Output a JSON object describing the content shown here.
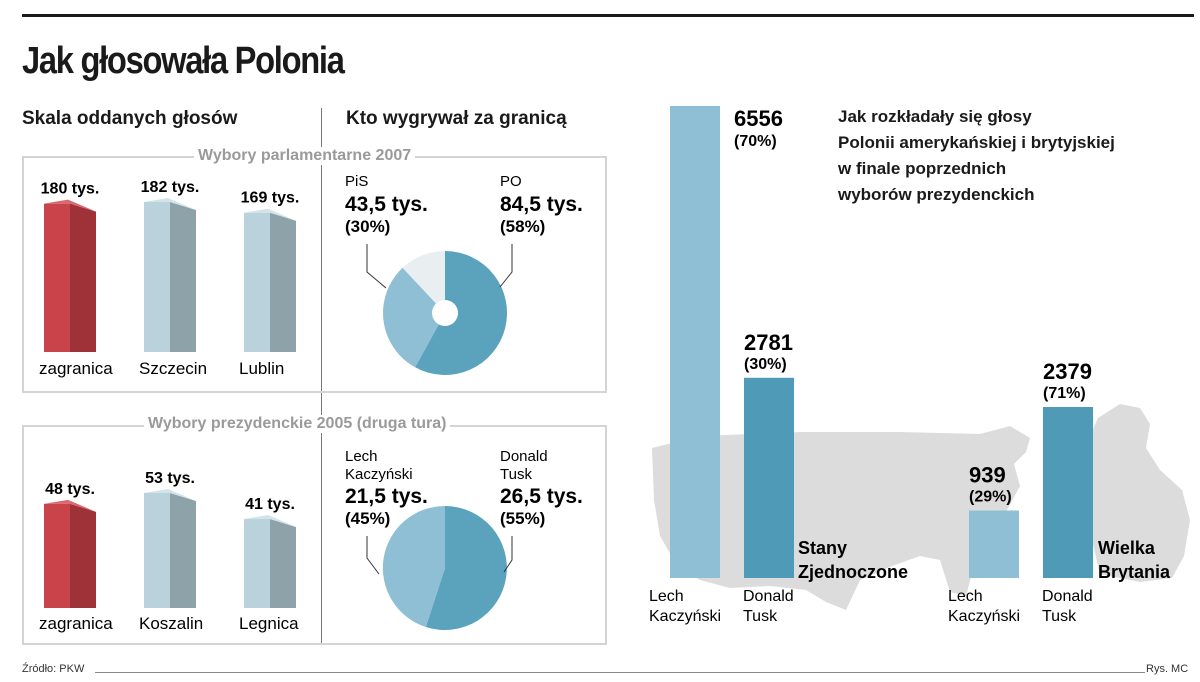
{
  "title": "Jak głosowała Polonia",
  "left_header": "Skala oddanych głosów",
  "middle_header": "Kto wygrywał za granicą",
  "right_header_lines": [
    "Jak rozkładały się głosy",
    "Polonii amerykańskiej i brytyjskiej",
    "w finale poprzednich",
    "wyborów prezydenckich"
  ],
  "footer": {
    "source": "Źródło: PKW",
    "credit": "Rys. MC"
  },
  "colors": {
    "red": "#c8434a",
    "red_dark": "#9f3238",
    "red_top": "#d9676c",
    "grey_front": "#b9d2dc",
    "grey_side": "#8ea2aa",
    "grey_top": "#d3e3ea",
    "pie_light": "#8fbfd4",
    "pie_dark": "#5ba2bd",
    "pie_other": "#e9eef1",
    "bar_light": "#8fbfd4",
    "bar_dark": "#4f9ab6",
    "map": "#dcdcdc"
  },
  "chart_data": [
    {
      "type": "bar",
      "title": "Wybory parlamentarne 2007",
      "categories": [
        "zagranica",
        "Szczecin",
        "Lublin"
      ],
      "values": [
        180,
        182,
        169
      ],
      "value_labels": [
        "180 tys.",
        "182 tys.",
        "169 tys."
      ],
      "unit": "tys.",
      "style": [
        "red",
        "grey",
        "grey"
      ]
    },
    {
      "type": "pie",
      "title": "Wybory parlamentarne 2007",
      "slices": [
        {
          "name": "PO",
          "value": 58,
          "label_value": "84,5 tys.",
          "label_pct": "(58%)"
        },
        {
          "name": "PiS",
          "value": 30,
          "label_value": "43,5 tys.",
          "label_pct": "(30%)"
        },
        {
          "name": "",
          "value": 12
        }
      ]
    },
    {
      "type": "bar",
      "title": "Wybory prezydenckie 2005 (druga tura)",
      "categories": [
        "zagranica",
        "Koszalin",
        "Legnica"
      ],
      "values": [
        48,
        53,
        41
      ],
      "value_labels": [
        "48 tys.",
        "53 tys.",
        "41 tys."
      ],
      "unit": "tys.",
      "style": [
        "red",
        "grey",
        "grey"
      ]
    },
    {
      "type": "pie",
      "title": "Wybory prezydenckie 2005 (druga tura)",
      "slices": [
        {
          "name": "Donald Tusk",
          "name_lines": [
            "Donald",
            "Tusk"
          ],
          "value": 55,
          "label_value": "26,5 tys.",
          "label_pct": "(55%)"
        },
        {
          "name": "Lech Kaczyński",
          "name_lines": [
            "Lech",
            "Kaczyński"
          ],
          "value": 45,
          "label_value": "21,5 tys.",
          "label_pct": "(45%)"
        }
      ]
    },
    {
      "type": "bar",
      "title": "Stany Zjednoczone",
      "title_lines": [
        "Stany",
        "Zjednoczone"
      ],
      "categories": [
        "Lech Kaczyński",
        "Donald Tusk"
      ],
      "category_lines": [
        [
          "Lech",
          "Kaczyński"
        ],
        [
          "Donald",
          "Tusk"
        ]
      ],
      "values": [
        6556,
        2781
      ],
      "percent_labels": [
        "(70%)",
        "(30%)"
      ]
    },
    {
      "type": "bar",
      "title": "Wielka Brytania",
      "title_lines": [
        "Wielka",
        "Brytania"
      ],
      "categories": [
        "Lech Kaczyński",
        "Donald Tusk"
      ],
      "category_lines": [
        [
          "Lech",
          "Kaczyński"
        ],
        [
          "Donald",
          "Tusk"
        ]
      ],
      "values": [
        939,
        2379
      ],
      "percent_labels": [
        "(29%)",
        "(71%)"
      ]
    }
  ]
}
